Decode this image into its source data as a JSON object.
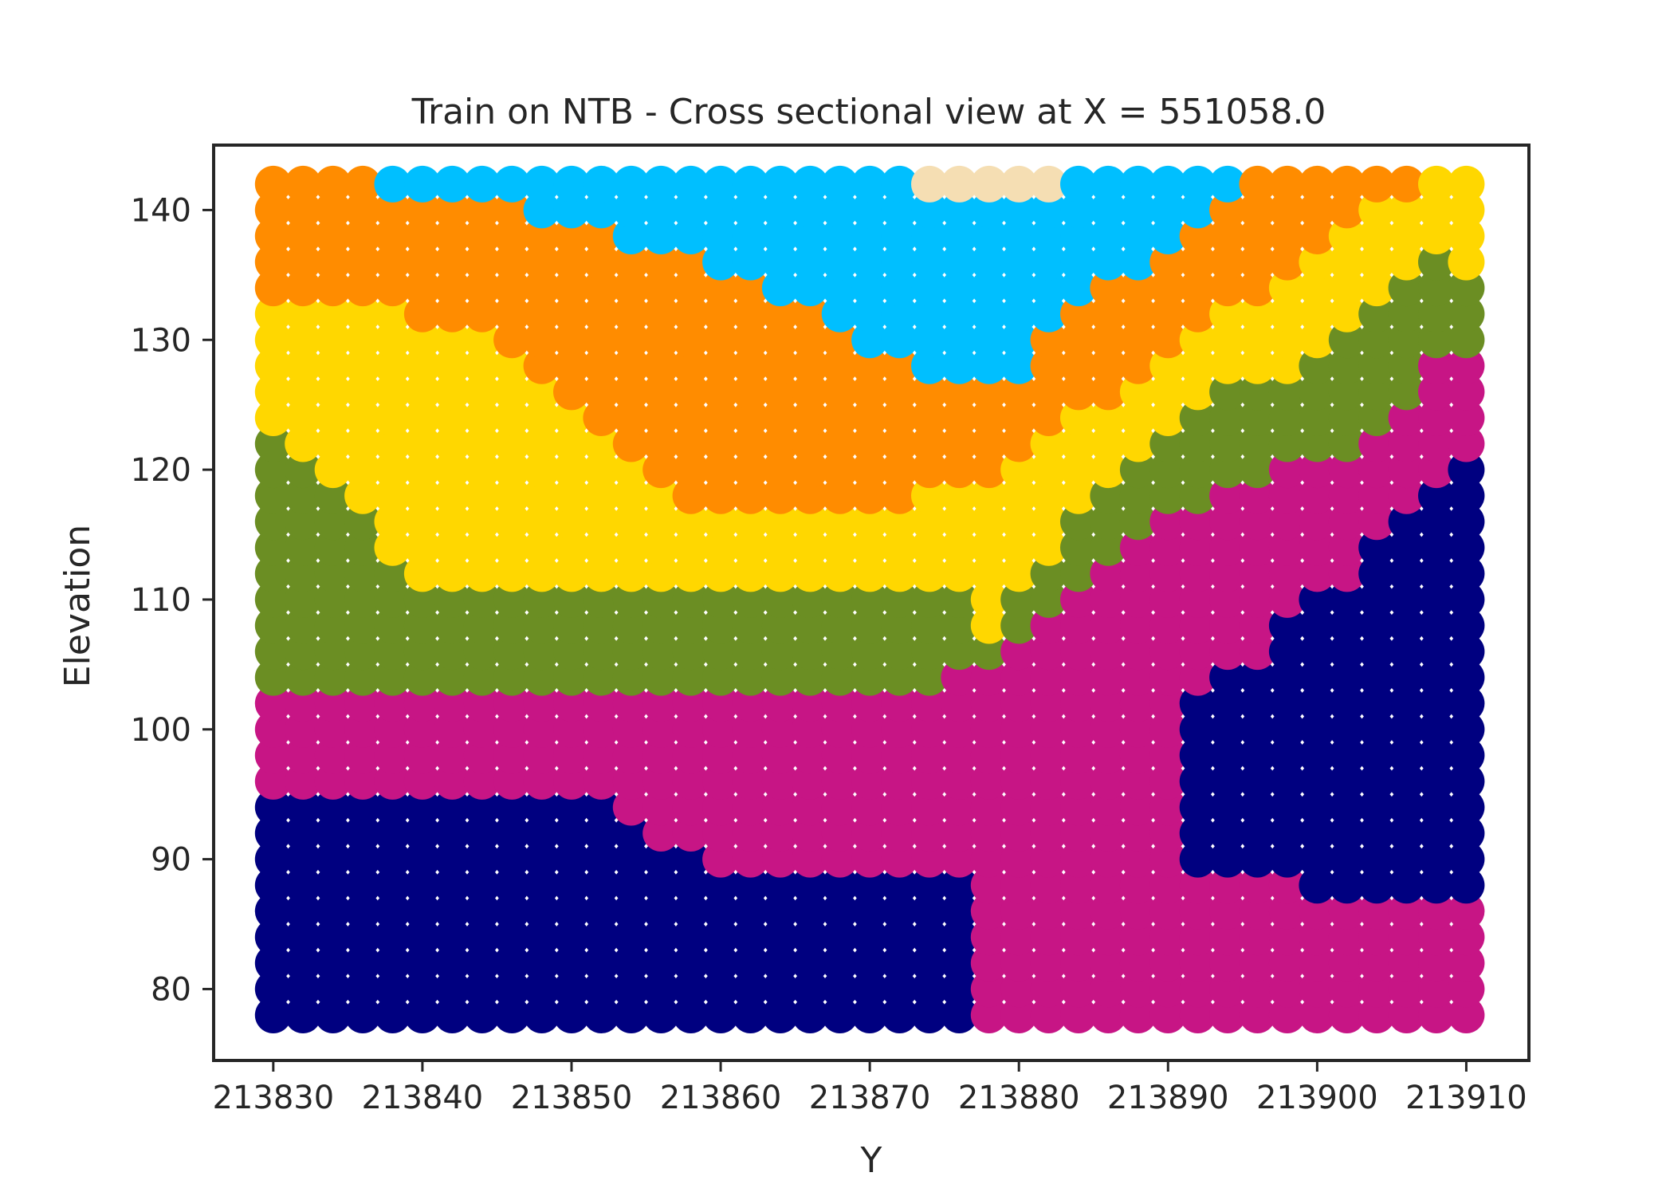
{
  "chart_data": {
    "type": "scatter",
    "title": "Train on NTB - Cross sectional view at X = 551058.0",
    "xlabel": "Y",
    "ylabel": "Elevation",
    "xlim": [
      213826.0,
      213914.2
    ],
    "ylim": [
      74.5,
      145.0
    ],
    "xticks": [
      213830,
      213840,
      213850,
      213860,
      213870,
      213880,
      213890,
      213900,
      213910
    ],
    "yticks": [
      80,
      90,
      100,
      110,
      120,
      130,
      140
    ],
    "x_range": [
      213830,
      213910
    ],
    "x_step": 2,
    "y_range": [
      78,
      142
    ],
    "y_step": 2,
    "grid": false,
    "legend": false,
    "classes": [
      {
        "id": "navy",
        "color": "#000080"
      },
      {
        "id": "magenta",
        "color": "#C71585"
      },
      {
        "id": "olive",
        "color": "#6B8E23"
      },
      {
        "id": "gold",
        "color": "#FFD700"
      },
      {
        "id": "orange",
        "color": "#FF8C00"
      },
      {
        "id": "skyblue",
        "color": "#00BFFF"
      },
      {
        "id": "wheat",
        "color": "#F5DEB3"
      }
    ],
    "layers": {
      "boundaries_note": "For each Y column, elevations at which the class changes (bottom to top)",
      "columns": [
        {
          "y": 213830,
          "navy_top": 94,
          "magenta_top": 102,
          "olive_top": 122,
          "gold_top": 132,
          "orange_top": 142
        },
        {
          "y": 213832,
          "navy_top": 94,
          "magenta_top": 102,
          "olive_top": 120,
          "gold_top": 132,
          "orange_top": 142
        },
        {
          "y": 213834,
          "navy_top": 94,
          "magenta_top": 102,
          "olive_top": 118,
          "gold_top": 132,
          "orange_top": 142
        },
        {
          "y": 213836,
          "navy_top": 94,
          "magenta_top": 102,
          "olive_top": 116,
          "gold_top": 132,
          "orange_top": 142
        },
        {
          "y": 213838,
          "navy_top": 94,
          "magenta_top": 102,
          "olive_top": 112,
          "gold_top": 132,
          "orange_top": 140,
          "sky_top": 142
        },
        {
          "y": 213840,
          "navy_top": 94,
          "magenta_top": 102,
          "olive_top": 110,
          "gold_top": 130,
          "orange_top": 140,
          "sky_top": 142
        },
        {
          "y": 213842,
          "navy_top": 94,
          "magenta_top": 102,
          "olive_top": 110,
          "gold_top": 130,
          "orange_top": 140,
          "sky_top": 142
        },
        {
          "y": 213844,
          "navy_top": 94,
          "magenta_top": 102,
          "olive_top": 110,
          "gold_top": 130,
          "orange_top": 140,
          "sky_top": 142
        },
        {
          "y": 213846,
          "navy_top": 94,
          "magenta_top": 102,
          "olive_top": 110,
          "gold_top": 128,
          "orange_top": 140,
          "sky_top": 142
        },
        {
          "y": 213848,
          "navy_top": 94,
          "magenta_top": 102,
          "olive_top": 110,
          "gold_top": 126,
          "orange_top": 138,
          "sky_top": 142
        },
        {
          "y": 213850,
          "navy_top": 94,
          "magenta_top": 102,
          "olive_top": 110,
          "gold_top": 124,
          "orange_top": 138,
          "sky_top": 142
        },
        {
          "y": 213852,
          "navy_top": 94,
          "magenta_top": 102,
          "olive_top": 110,
          "gold_top": 122,
          "orange_top": 138,
          "sky_top": 142
        },
        {
          "y": 213854,
          "navy_top": 92,
          "magenta_top": 102,
          "olive_top": 110,
          "gold_top": 120,
          "orange_top": 136,
          "sky_top": 142
        },
        {
          "y": 213856,
          "navy_top": 90,
          "magenta_top": 102,
          "olive_top": 110,
          "gold_top": 118,
          "orange_top": 136,
          "sky_top": 142
        },
        {
          "y": 213858,
          "navy_top": 90,
          "magenta_top": 102,
          "olive_top": 110,
          "gold_top": 116,
          "orange_top": 136,
          "sky_top": 142
        },
        {
          "y": 213860,
          "navy_top": 88,
          "magenta_top": 102,
          "olive_top": 110,
          "gold_top": 116,
          "orange_top": 134,
          "sky_top": 142
        },
        {
          "y": 213862,
          "navy_top": 88,
          "magenta_top": 102,
          "olive_top": 110,
          "gold_top": 116,
          "orange_top": 134,
          "sky_top": 142
        },
        {
          "y": 213864,
          "navy_top": 88,
          "magenta_top": 102,
          "olive_top": 110,
          "gold_top": 116,
          "orange_top": 132,
          "sky_top": 142
        },
        {
          "y": 213866,
          "navy_top": 88,
          "magenta_top": 102,
          "olive_top": 110,
          "gold_top": 116,
          "orange_top": 132,
          "sky_top": 142
        },
        {
          "y": 213868,
          "navy_top": 88,
          "magenta_top": 102,
          "olive_top": 110,
          "gold_top": 116,
          "orange_top": 130,
          "sky_top": 142
        },
        {
          "y": 213870,
          "navy_top": 88,
          "magenta_top": 102,
          "olive_top": 110,
          "gold_top": 116,
          "orange_top": 128,
          "sky_top": 142
        },
        {
          "y": 213872,
          "navy_top": 88,
          "magenta_top": 102,
          "olive_top": 110,
          "gold_top": 116,
          "orange_top": 128,
          "sky_top": 142
        },
        {
          "y": 213874,
          "navy_top": 88,
          "magenta_top": 102,
          "olive_top": 110,
          "gold_top": 118,
          "orange_top": 126,
          "sky_top": 140,
          "wheat_top": 142
        },
        {
          "y": 213876,
          "navy_top": 88,
          "magenta_top": 104,
          "olive_top": 110,
          "gold_top": 118,
          "orange_top": 126,
          "sky_top": 140,
          "wheat_top": 142
        },
        {
          "y": 213878,
          "navy_top": 76,
          "magenta_top": 104,
          "olive_top": 106,
          "gold_top": 118,
          "orange_top": 126,
          "sky_top": 140,
          "wheat_top": 142
        },
        {
          "y": 213880,
          "navy_top": 80,
          "magenta_top": 106,
          "olive_top": 110,
          "gold_top": 120,
          "orange_top": 126,
          "sky_top": 140,
          "wheat_top": 142
        },
        {
          "y": 213882,
          "navy_top": 82,
          "magenta_top": 108,
          "olive_top": 112,
          "gold_top": 122,
          "orange_top": 130,
          "sky_top": 140,
          "wheat_top": 142
        },
        {
          "y": 213884,
          "navy_top": 86,
          "magenta_top": 110,
          "olive_top": 116,
          "gold_top": 124,
          "orange_top": 132,
          "sky_top": 142
        },
        {
          "y": 213886,
          "navy_top": 76,
          "magenta_top": 112,
          "olive_top": 118,
          "gold_top": 124,
          "orange_top": 134,
          "sky_top": 142
        },
        {
          "y": 213888,
          "navy_top": 76,
          "magenta_top": 114,
          "olive_top": 120,
          "gold_top": 126,
          "orange_top": 134,
          "sky_top": 142
        },
        {
          "y": 213890,
          "navy_top": 76,
          "magenta_top": 116,
          "olive_top": 122,
          "gold_top": 128,
          "orange_top": 136,
          "sky_top": 142
        },
        {
          "y": 213892,
          "navy_top": 76,
          "magenta_top": 116,
          "olive_top": 124,
          "gold_top": 130,
          "orange_top": 138,
          "sky_top": 142
        },
        {
          "y": 213894,
          "navy_top": 76,
          "magenta_top": 118,
          "olive_top": 126,
          "gold_top": 132,
          "orange_top": 140,
          "sky_top": 142
        },
        {
          "y": 213896,
          "navy_top": 76,
          "magenta_top": 118,
          "olive_top": 126,
          "gold_top": 132,
          "orange_top": 142
        },
        {
          "y": 213898,
          "navy_top": 76,
          "magenta_top": 120,
          "olive_top": 126,
          "gold_top": 134,
          "orange_top": 142
        },
        {
          "y": 213900,
          "navy_top": 76,
          "magenta_top": 120,
          "olive_top": 128,
          "gold_top": 136,
          "orange_top": 142
        },
        {
          "y": 213902,
          "navy_top": 76,
          "magenta_top": 120,
          "olive_top": 130,
          "gold_top": 138,
          "orange_top": 142
        },
        {
          "y": 213904,
          "navy_top": 76,
          "magenta_top": 122,
          "olive_top": 132,
          "gold_top": 140,
          "orange_top": 142
        },
        {
          "y": 213906,
          "navy_top": 76,
          "magenta_top": 124,
          "olive_top": 134,
          "gold_top": 140,
          "orange_top": 142
        },
        {
          "y": 213908,
          "navy_top": 76,
          "magenta_top": 128,
          "olive_top": 136,
          "gold_top": 142
        },
        {
          "y": 213910,
          "navy_top": 76,
          "magenta_top": 128,
          "olive_top": 134,
          "gold_top": 142
        }
      ]
    },
    "overrides": [
      {
        "color": "navy",
        "points": [
          [
            213878,
            78
          ],
          [
            213878,
            76
          ]
        ]
      },
      {
        "color": "magenta",
        "x_min": 213878,
        "y_min": 78,
        "y_max": 80,
        "x_max": 213880
      },
      {
        "note": "right-side navy pocket (Y 213890-213910, Elev 88-120)"
      }
    ],
    "right_navy_pocket": {
      "columns": [
        {
          "y": 213892,
          "bottom": 90,
          "top": 102
        },
        {
          "y": 213894,
          "bottom": 90,
          "top": 104
        },
        {
          "y": 213896,
          "bottom": 90,
          "top": 104
        },
        {
          "y": 213898,
          "bottom": 90,
          "top": 108
        },
        {
          "y": 213900,
          "bottom": 88,
          "top": 110
        },
        {
          "y": 213902,
          "bottom": 88,
          "top": 110
        },
        {
          "y": 213904,
          "bottom": 88,
          "top": 114
        },
        {
          "y": 213906,
          "bottom": 88,
          "top": 116
        },
        {
          "y": 213908,
          "bottom": 88,
          "top": 118
        },
        {
          "y": 213910,
          "bottom": 88,
          "top": 120
        }
      ]
    },
    "central_magenta_pipe": {
      "x_from": 213884,
      "x_to": 213890,
      "y_from": 78,
      "y_to": 110
    }
  }
}
